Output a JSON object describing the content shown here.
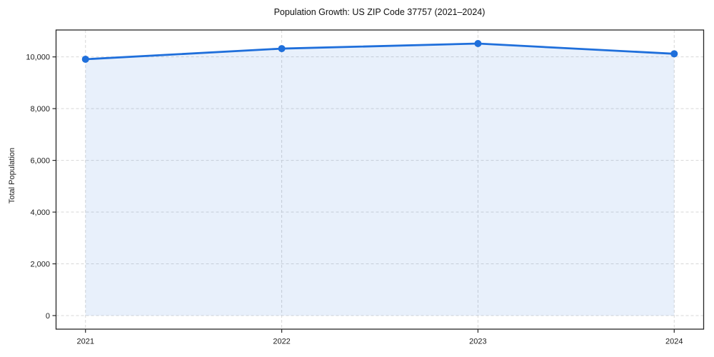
{
  "chart_data": {
    "type": "area",
    "title": "Population Growth: US ZIP Code 37757 (2021–2024)",
    "xlabel": "",
    "ylabel": "Total Population",
    "categories": [
      "2021",
      "2022",
      "2023",
      "2024"
    ],
    "x": [
      2021,
      2022,
      2023,
      2024
    ],
    "series": [
      {
        "name": "Total Population",
        "values": [
          9910,
          10320,
          10515,
          10120
        ]
      }
    ],
    "fill_baseline": 0,
    "xlim": [
      2020.85,
      2024.15
    ],
    "ylim": [
      -525,
      11040
    ],
    "xticks": [
      2021,
      2022,
      2023,
      2024
    ],
    "xtick_labels": [
      "2021",
      "2022",
      "2023",
      "2024"
    ],
    "yticks": [
      0,
      2000,
      4000,
      6000,
      8000,
      10000
    ],
    "ytick_labels": [
      "0",
      "2,000",
      "4,000",
      "6,000",
      "8,000",
      "10,000"
    ],
    "grid": true,
    "grid_style": "dashed",
    "legend": "none",
    "colors": {
      "line": "#1f6fdb",
      "marker": "#1f6fdb",
      "area_fill": "rgba(31, 111, 219, 0.10)",
      "grid": "#d7d7d7",
      "spine": "#262626",
      "text": "#1c1c1c"
    }
  }
}
